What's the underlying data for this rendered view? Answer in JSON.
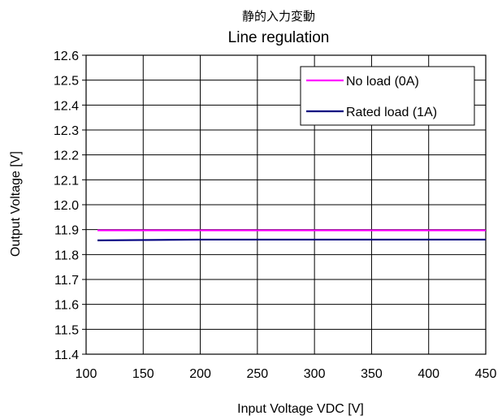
{
  "chart_data": {
    "type": "line",
    "title": "静的入力変動",
    "subtitle": "Line regulation",
    "xlabel": "Input Voltage VDC [V]",
    "ylabel": "Output Voltage [V]",
    "xlim": [
      100,
      450
    ],
    "ylim": [
      11.4,
      12.6
    ],
    "xticks": [
      "100",
      "150",
      "200",
      "250",
      "300",
      "350",
      "400",
      "450"
    ],
    "yticks": [
      "11.4",
      "11.5",
      "11.6",
      "11.7",
      "11.8",
      "11.9",
      "12.0",
      "12.1",
      "12.2",
      "12.3",
      "12.4",
      "12.5",
      "12.6"
    ],
    "grid": true,
    "legend_position": "top-right",
    "series": [
      {
        "name": "No load (0A)",
        "color": "#ff00ff",
        "x": [
          110,
          450
        ],
        "y": [
          11.897,
          11.897
        ]
      },
      {
        "name": "Rated load (1A)",
        "color": "#000080",
        "x": [
          110,
          200,
          450
        ],
        "y": [
          11.857,
          11.86,
          11.86
        ]
      }
    ]
  }
}
